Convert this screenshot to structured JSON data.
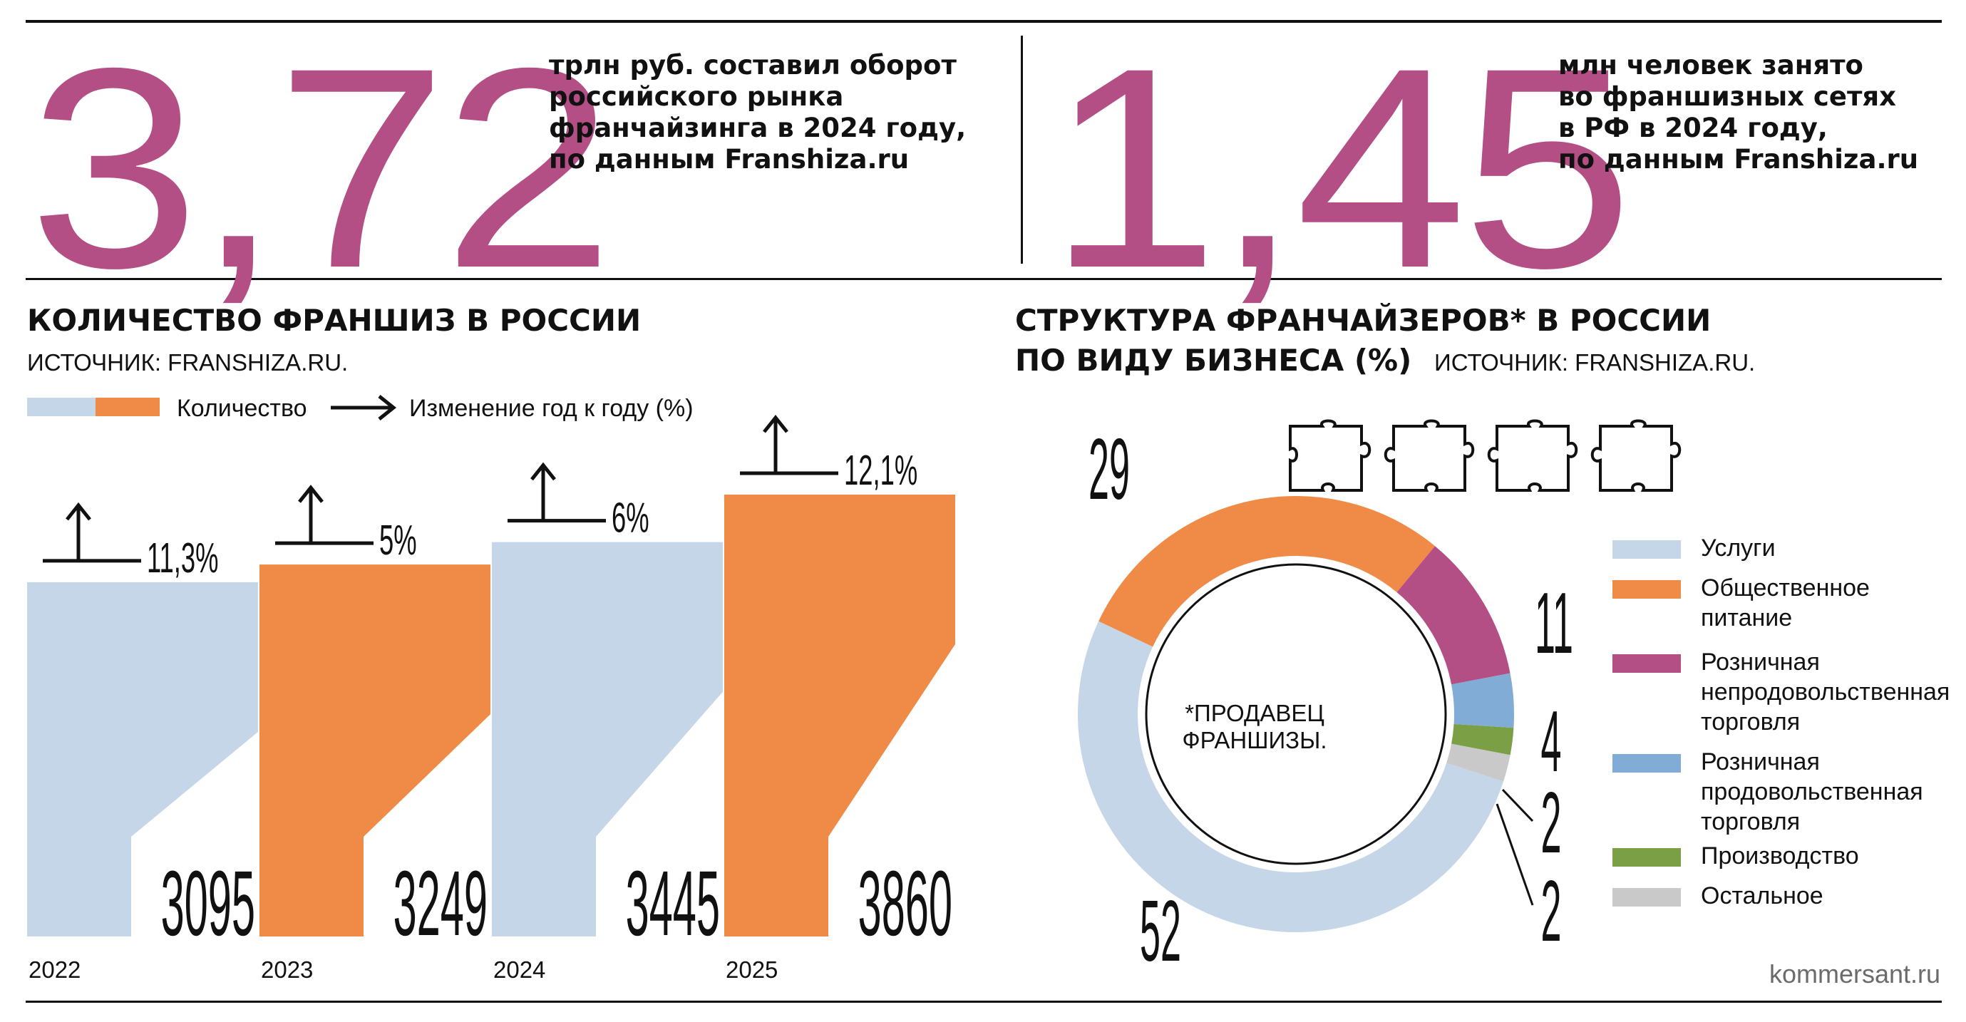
{
  "headline_left": {
    "number": "3,72",
    "lines": [
      "трлн руб. составил оборот",
      "российского рынка",
      "франчайзинга в 2024 году,",
      "по данным Franshiza.ru"
    ]
  },
  "headline_right": {
    "number": "1,45",
    "lines": [
      "млн человек занято",
      "во франшизных сетях",
      "в РФ в 2024 году,",
      "по данным Franshiza.ru"
    ]
  },
  "left_section": {
    "title": "КОЛИЧЕСТВО ФРАНШИЗ В РОССИИ",
    "source": "ИСТОЧНИК: FRANSHIZA.RU.",
    "legend_quantity": "Количество",
    "legend_change": "Изменение год к году (%)"
  },
  "right_section": {
    "title_line1": "СТРУКТУРА ФРАНЧАЙЗЕРОВ* В РОССИИ",
    "title_line2": "ПО ВИДУ БИЗНЕСА (%)",
    "source": "ИСТОЧНИК: FRANSHIZA.RU.",
    "center_note": "*ПРОДАВЕЦ ФРАНШИЗЫ."
  },
  "footer": {
    "site": "kommersant.ru"
  },
  "colors": {
    "accent": "#b44f86",
    "light_blue": "#c5d6e8",
    "orange": "#ef8b46",
    "purple": "#b44f86",
    "blue": "#80acd6",
    "green": "#7b9f44",
    "grey": "#c9c9c9"
  },
  "chart_data": [
    {
      "type": "bar",
      "title": "КОЛИЧЕСТВО ФРАНШИЗ В РОССИИ",
      "categories": [
        "2022",
        "2023",
        "2024",
        "2025"
      ],
      "values": [
        3095,
        3249,
        3445,
        3860
      ],
      "value_labels": [
        "3095",
        "3249",
        "3445",
        "3860"
      ],
      "yoy_change_labels": [
        "11,3%",
        "5%",
        "6%",
        "12,1%"
      ],
      "yoy_change": [
        11.3,
        5,
        6,
        12.1
      ],
      "ylim": [
        0,
        3860
      ],
      "colors": [
        "#c5d6e8",
        "#ef8b46",
        "#c5d6e8",
        "#ef8b46"
      ]
    },
    {
      "type": "pie",
      "title": "СТРУКТУРА ФРАНЧАЙЗЕРОВ* В РОССИИ ПО ВИДУ БИЗНЕСА (%)",
      "slices": [
        {
          "name": "Общественное питание",
          "value": 29,
          "label": "29",
          "color": "#ef8b46"
        },
        {
          "name": "Розничная непродовольственная торговля",
          "value": 11,
          "label": "11",
          "color": "#b44f86"
        },
        {
          "name": "Розничная продовольственная торговля",
          "value": 4,
          "label": "4",
          "color": "#80acd6"
        },
        {
          "name": "Производство",
          "value": 2,
          "label": "2",
          "color": "#7b9f44"
        },
        {
          "name": "Остальное",
          "value": 2,
          "label": "2",
          "color": "#c9c9c9"
        },
        {
          "name": "Услуги",
          "value": 52,
          "label": "52",
          "color": "#c5d6e8"
        }
      ],
      "legend": [
        {
          "lines": [
            "Услуги"
          ],
          "color": "#c5d6e8"
        },
        {
          "lines": [
            "Общественное",
            "питание"
          ],
          "color": "#ef8b46"
        },
        {
          "lines": [
            "Розничная",
            "непродовольственная",
            "торговля"
          ],
          "color": "#b44f86"
        },
        {
          "lines": [
            "Розничная",
            "продовольственная",
            "торговля"
          ],
          "color": "#80acd6"
        },
        {
          "lines": [
            "Производство"
          ],
          "color": "#7b9f44"
        },
        {
          "lines": [
            "Остальное"
          ],
          "color": "#c9c9c9"
        }
      ]
    }
  ]
}
